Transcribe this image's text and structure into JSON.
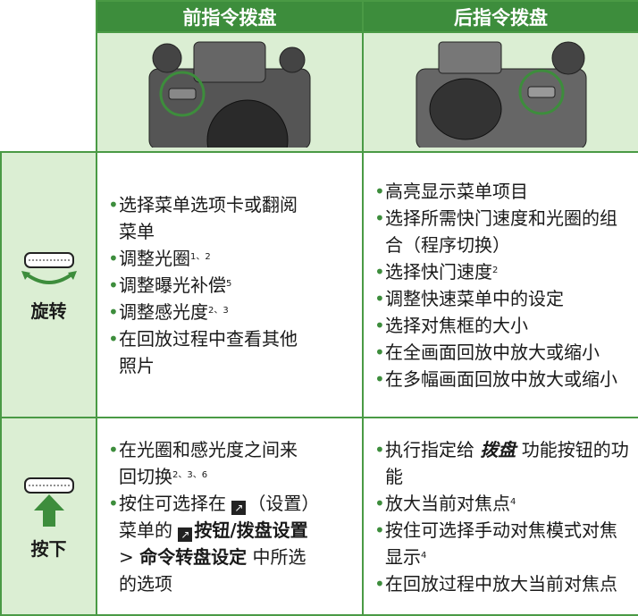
{
  "header": {
    "front": "前指令拨盘",
    "rear": "后指令拨盘"
  },
  "rows": [
    {
      "label": "旋转",
      "front": [
        [
          {
            "t": "选择菜单选项卡或翻阅菜单"
          }
        ],
        [
          {
            "t": "调整光圈"
          },
          {
            "t": "1、2",
            "style": "sup"
          }
        ],
        [
          {
            "t": "调整曝光补偿"
          },
          {
            "t": "5",
            "style": "sup"
          }
        ],
        [
          {
            "t": "调整感光度"
          },
          {
            "t": "2、3",
            "style": "sup"
          }
        ],
        [
          {
            "t": "在回放过程中查看其他照片"
          }
        ]
      ],
      "rear": [
        [
          {
            "t": "高亮显示菜单项目"
          }
        ],
        [
          {
            "t": "选择所需快门速度和光圈的组合（程序切换）"
          }
        ],
        [
          {
            "t": "选择快门速度"
          },
          {
            "t": "2",
            "style": "sup"
          }
        ],
        [
          {
            "t": "调整快速菜单中的设定"
          }
        ],
        [
          {
            "t": "选择对焦框的大小"
          }
        ],
        [
          {
            "t": "在全画面回放中放大或缩小"
          }
        ],
        [
          {
            "t": "在多幅画面回放中放大或缩小"
          }
        ]
      ]
    },
    {
      "label": "按下",
      "front": [
        [
          {
            "t": "在光圈和感光度之间来回切换"
          },
          {
            "t": "2、3、6",
            "style": "sup"
          }
        ],
        [
          {
            "t": "按住可选择在 "
          },
          {
            "style": "icon"
          },
          {
            "t": "（设置）菜单的 "
          },
          {
            "style": "icon"
          },
          {
            "t": "按钮/拨盘设置",
            "style": "bold"
          },
          {
            "t": " > "
          },
          {
            "t": "命令转盘设定",
            "style": "bold"
          },
          {
            "t": " 中所选的选项"
          }
        ]
      ],
      "rear": [
        [
          {
            "t": "执行指定给 "
          },
          {
            "t": "拨盘",
            "style": "bolditalic"
          },
          {
            "t": " 功能按钮的功能"
          }
        ],
        [
          {
            "t": "放大当前对焦点"
          },
          {
            "t": "4",
            "style": "sup"
          }
        ],
        [
          {
            "t": "按住可选择手动对焦模式对焦显示"
          },
          {
            "t": "4",
            "style": "sup"
          }
        ],
        [
          {
            "t": "在回放过程中放大当前对焦点"
          }
        ]
      ]
    }
  ]
}
